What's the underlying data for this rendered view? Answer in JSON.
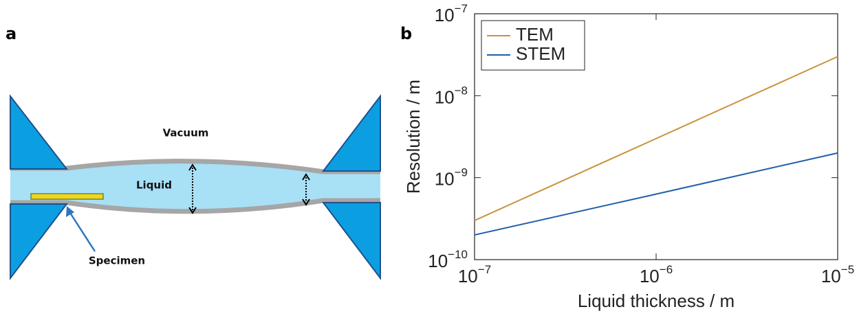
{
  "diagram": {
    "panel_label": "a",
    "vacuum": "Vacuum",
    "liquid": "Liquid",
    "specimen": "Specimen"
  },
  "chart_data": {
    "type": "line",
    "panel_label": "b",
    "xlabel": "Liquid thickness / m",
    "ylabel": "Resolution / m",
    "x": [
      1e-07,
      1e-06,
      1e-05
    ],
    "series": [
      {
        "name": "TEM",
        "color": "#c8923a",
        "values": [
          3e-10,
          3e-09,
          3e-08
        ]
      },
      {
        "name": "STEM",
        "color": "#1f5ea8",
        "values": [
          2e-10,
          6.3e-10,
          2e-09
        ]
      }
    ],
    "xscale": "log",
    "yscale": "log",
    "xlim": [
      1e-07,
      1e-05
    ],
    "ylim": [
      1e-10,
      1e-07
    ],
    "xticks": [
      {
        "value": 1e-07,
        "label": "10",
        "exponent": "−7"
      },
      {
        "value": 1e-06,
        "label": "10",
        "exponent": "−6"
      },
      {
        "value": 1e-05,
        "label": "10",
        "exponent": "−5"
      }
    ],
    "yticks": [
      {
        "value": 1e-10,
        "label": "10",
        "exponent": "−10"
      },
      {
        "value": 1e-09,
        "label": "10",
        "exponent": "−9"
      },
      {
        "value": 1e-08,
        "label": "10",
        "exponent": "−8"
      },
      {
        "value": 1e-07,
        "label": "10",
        "exponent": "−7"
      }
    ],
    "legend": "upper left"
  }
}
